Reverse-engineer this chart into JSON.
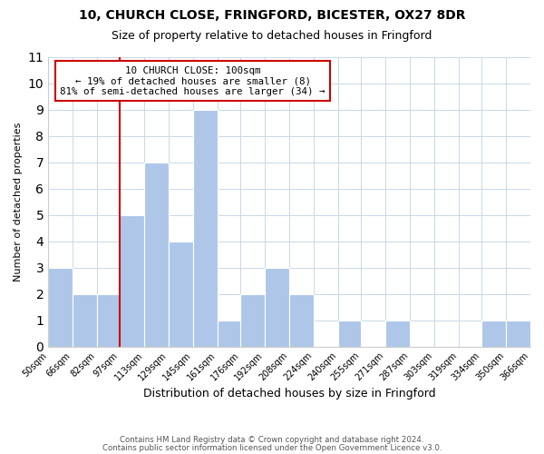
{
  "title1": "10, CHURCH CLOSE, FRINGFORD, BICESTER, OX27 8DR",
  "title2": "Size of property relative to detached houses in Fringford",
  "xlabel": "Distribution of detached houses by size in Fringford",
  "ylabel": "Number of detached properties",
  "bin_edges": [
    50,
    66,
    82,
    97,
    113,
    129,
    145,
    161,
    176,
    192,
    208,
    224,
    240,
    255,
    271,
    287,
    303,
    319,
    334,
    350,
    366
  ],
  "bin_labels": [
    "50sqm",
    "66sqm",
    "82sqm",
    "97sqm",
    "113sqm",
    "129sqm",
    "145sqm",
    "161sqm",
    "176sqm",
    "192sqm",
    "208sqm",
    "224sqm",
    "240sqm",
    "255sqm",
    "271sqm",
    "287sqm",
    "303sqm",
    "319sqm",
    "334sqm",
    "350sqm",
    "366sqm"
  ],
  "counts": [
    3,
    2,
    2,
    5,
    7,
    4,
    9,
    1,
    2,
    3,
    2,
    0,
    1,
    0,
    1,
    0,
    0,
    0,
    1,
    1
  ],
  "bar_color": "#aec6e8",
  "property_line_x": 97,
  "ylim": [
    0,
    11
  ],
  "yticks": [
    0,
    1,
    2,
    3,
    4,
    5,
    6,
    7,
    8,
    9,
    10,
    11
  ],
  "annotation_box_text": "10 CHURCH CLOSE: 100sqm\n← 19% of detached houses are smaller (8)\n81% of semi-detached houses are larger (34) →",
  "footnote1": "Contains HM Land Registry data © Crown copyright and database right 2024.",
  "footnote2": "Contains public sector information licensed under the Open Government Licence v3.0.",
  "line_color": "#cc0000",
  "box_edge_color": "#cc0000",
  "background_color": "#ffffff",
  "grid_color": "#c8d8e8"
}
